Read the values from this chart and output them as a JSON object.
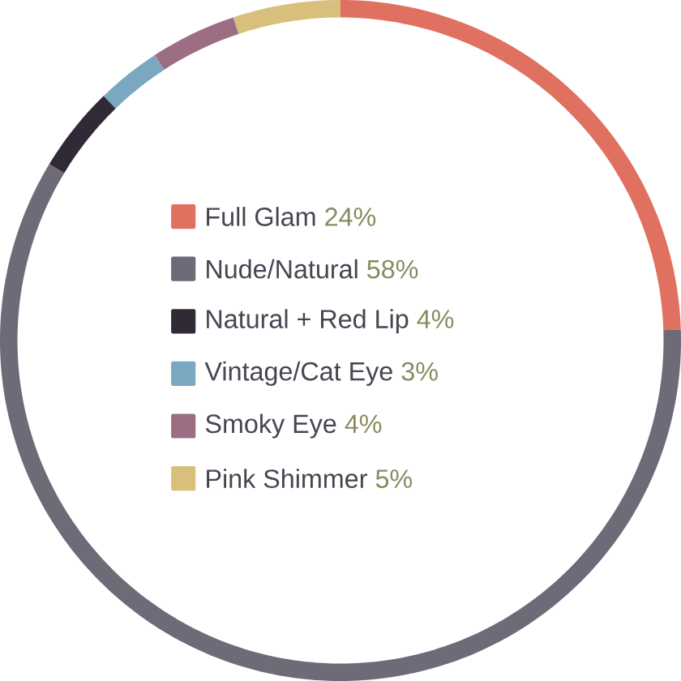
{
  "chart_data": {
    "type": "donut",
    "categories": [
      "Full Glam",
      "Nude/Natural",
      "Natural + Red Lip",
      "Vintage/Cat Eye",
      "Smoky Eye",
      "Pink Shimmer"
    ],
    "values": [
      24,
      58,
      4,
      3,
      4,
      5
    ],
    "value_labels": [
      "24%",
      "58%",
      "4%",
      "3%",
      "4%",
      "5%"
    ],
    "colors": [
      "#e07060",
      "#6e6a78",
      "#302a36",
      "#7aa8c0",
      "#9c6e84",
      "#d8c07c"
    ],
    "legend": "center"
  }
}
